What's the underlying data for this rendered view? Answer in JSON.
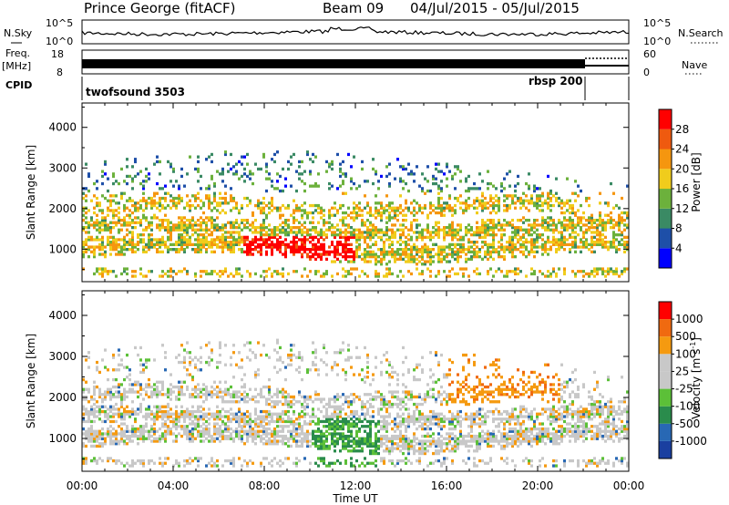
{
  "header": {
    "station": "Prince George (fitACF)",
    "beam": "Beam 09",
    "dates": "04/Jul/2015 - 05/Jul/2015"
  },
  "strip_labels": {
    "nsky": "N.Sky",
    "nsearch": "N.Search",
    "freq_top": "Freq.",
    "freq_unit": "[MHz]",
    "nave": "Nave",
    "cpid": "CPID"
  },
  "strip_ticks": {
    "nsky_left": [
      "10^5",
      "10^0"
    ],
    "nsky_right": [
      "10^5",
      "10^0"
    ],
    "freq_left": [
      "18",
      "8"
    ],
    "nave_right": [
      "60",
      "0"
    ]
  },
  "cpid_segments": [
    {
      "label": "twofsound 3503",
      "start_hour": 0
    },
    {
      "label": "rbsp 200",
      "start_hour": 21.8
    }
  ],
  "colors": {
    "power_scale": [
      "#0000ff",
      "#1e4fa8",
      "#3a8a64",
      "#6cb13c",
      "#f0cc1c",
      "#f5960f",
      "#ef5a0f",
      "#ff0000"
    ],
    "velocity_scale": [
      "#1a3fa0",
      "#2868b4",
      "#2a8c4c",
      "#5cc038",
      "#c8c8c8",
      "#c8c8c8",
      "#f59a10",
      "#f06a10",
      "#ff0000"
    ]
  },
  "chart_data": [
    {
      "type": "heatmap",
      "name": "power",
      "xlabel": "",
      "ylabel": "Slant Range [km]",
      "x_range_hours": [
        0,
        24
      ],
      "ylim": [
        200,
        4600
      ],
      "yticks": [
        "1000",
        "2000",
        "3000",
        "4000"
      ],
      "colorbar_label": "Power [dB]",
      "colorbar_ticks": [
        "28",
        "24",
        "20",
        "16",
        "12",
        "8",
        "4"
      ],
      "colorbar_range": [
        0,
        32
      ]
    },
    {
      "type": "heatmap",
      "name": "velocity",
      "xlabel": "Time UT",
      "ylabel": "Slant Range [km]",
      "x_range_hours": [
        0,
        24
      ],
      "xticks": [
        "00:00",
        "04:00",
        "08:00",
        "12:00",
        "16:00",
        "20:00",
        "00:00"
      ],
      "ylim": [
        200,
        4600
      ],
      "yticks": [
        "1000",
        "2000",
        "3000",
        "4000"
      ],
      "colorbar_label": "Velocity [m s",
      "colorbar_label_sup": "-1",
      "colorbar_label_end": "]",
      "colorbar_ticks": [
        "1000",
        "500",
        "100",
        "25",
        "-25",
        "-100",
        "-500",
        "-1000"
      ]
    }
  ]
}
